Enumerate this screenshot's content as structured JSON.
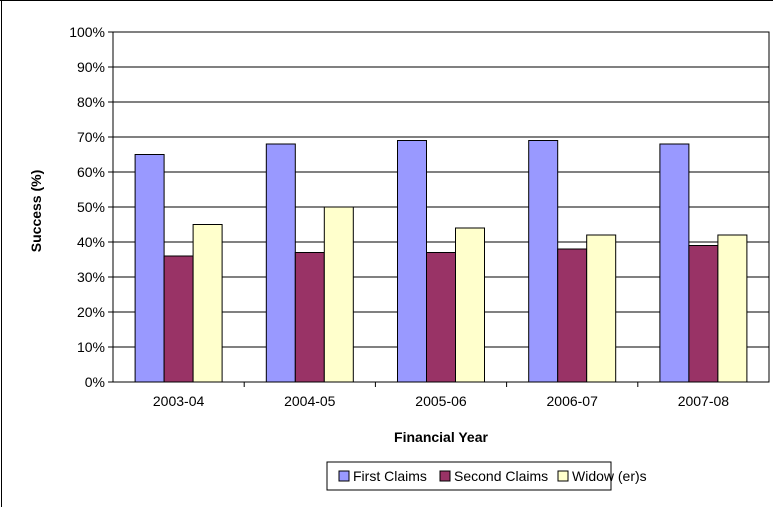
{
  "chart_data": {
    "type": "bar",
    "title": "",
    "xlabel": "Financial Year",
    "ylabel": "Success (%)",
    "ylim": [
      0,
      100
    ],
    "y_tick_step": 10,
    "y_tick_format": "percent",
    "grid": true,
    "legend_position": "bottom",
    "categories": [
      "2003-04",
      "2004-05",
      "2005-06",
      "2006-07",
      "2007-08"
    ],
    "series": [
      {
        "name": "First Claims",
        "color": "#9999FF",
        "values": [
          65,
          68,
          69,
          69,
          68
        ]
      },
      {
        "name": "Second Claims",
        "color": "#993366",
        "values": [
          36,
          37,
          37,
          38,
          39
        ]
      },
      {
        "name": "Widow (er)s",
        "color": "#FFFFCC",
        "values": [
          45,
          50,
          44,
          42,
          42
        ]
      }
    ]
  }
}
